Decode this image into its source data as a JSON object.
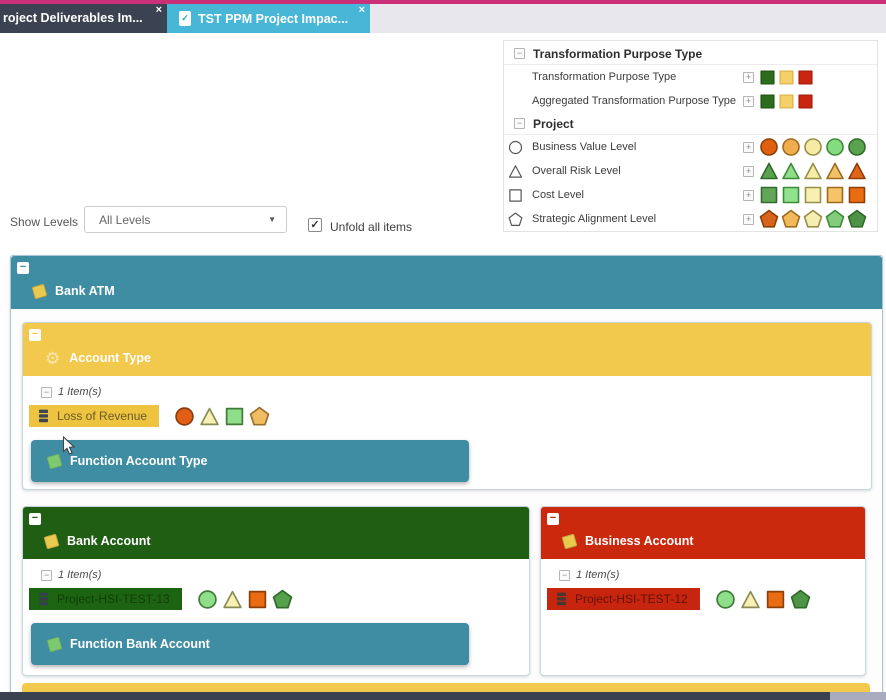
{
  "glyphs": {
    "collapse": "−",
    "expand": "+",
    "caret": "▼",
    "check": "✓",
    "close": "×",
    "gear": "⚙"
  },
  "tab_bar": {
    "strip_color": "#c93077",
    "bar_bg": "#e9e7ee",
    "tabs": [
      {
        "label": "roject Deliverables Im...",
        "bg": "#3b4251",
        "active": false
      },
      {
        "label": "TST PPM Project Impac...",
        "bg": "#47b6d7",
        "active": true
      }
    ]
  },
  "legend": {
    "sections": [
      {
        "title": "Transformation Purpose Type",
        "rows": [
          {
            "label": "Transformation Purpose Type",
            "swatch_shape": "square",
            "fills": [
              "#2d6b1d",
              "#f5d06a",
              "#c92511"
            ],
            "strokes": [
              "#245816",
              "#dcb84e",
              "#a81e0c"
            ]
          },
          {
            "label": "Aggregated Transformation Purpose Type",
            "swatch_shape": "square",
            "fills": [
              "#2d6b1d",
              "#f5d06a",
              "#c92511"
            ],
            "strokes": [
              "#245816",
              "#dcb84e",
              "#a81e0c"
            ]
          }
        ]
      },
      {
        "title": "Project",
        "rows": [
          {
            "label": "Business Value Level",
            "icon_shape": "circle",
            "swatch_shape": "circle",
            "fills": [
              "#e0600f",
              "#f0ad4e",
              "#f5eba2",
              "#85dc80",
              "#5aa34e"
            ],
            "strokes": [
              "#8a4008",
              "#a06a1e",
              "#96904a",
              "#3f8a3a",
              "#2f6b2a"
            ]
          },
          {
            "label": "Overall Risk Level",
            "icon_shape": "triangle",
            "swatch_shape": "triangle",
            "fills": [
              "#5ca14e",
              "#8fdc8a",
              "#f5eda6",
              "#f0c36a",
              "#e2641a"
            ],
            "strokes": [
              "#2f6b2a",
              "#3f8a3a",
              "#96904a",
              "#a06a1e",
              "#8a4008"
            ]
          },
          {
            "label": "Cost Level",
            "icon_shape": "square",
            "swatch_shape": "square",
            "fills": [
              "#63a659",
              "#90e28c",
              "#f7f0b0",
              "#f5c468",
              "#ea6c12"
            ],
            "strokes": [
              "#2f6b2a",
              "#3f8a3a",
              "#96904a",
              "#a06a1e",
              "#8a4008"
            ]
          },
          {
            "label": "Strategic Alignment Level",
            "icon_shape": "pentagon",
            "swatch_shape": "pentagon",
            "fills": [
              "#d8641c",
              "#f0b95a",
              "#f5eeb0",
              "#83cc7c",
              "#4d9247"
            ],
            "strokes": [
              "#8a4008",
              "#a06a1e",
              "#96904a",
              "#3f8a3a",
              "#2f6b2a"
            ]
          }
        ]
      }
    ]
  },
  "controls": {
    "show_levels_label": "Show Levels",
    "level_value": "All Levels",
    "unfold_label": "Unfold all items",
    "unfold_checked": true
  },
  "diagram": {
    "root": {
      "title": "Bank ATM",
      "header_color": "#3e8da3"
    },
    "account_type": {
      "title": "Account Type",
      "header_color": "#f3c94d",
      "items_count_label": "1 Item(s)",
      "item": {
        "label": "Loss of Revenue",
        "chip_bg": "#eec33f",
        "chip_text_color": "#6a5b2b",
        "shapes": [
          {
            "type": "circle",
            "fill": "#e05f14",
            "stroke": "#8a3c10"
          },
          {
            "type": "triangle",
            "fill": "#f7f0b5",
            "stroke": "#8a8a54"
          },
          {
            "type": "square",
            "fill": "#8fdf8a",
            "stroke": "#3f7a38"
          },
          {
            "type": "pentagon",
            "fill": "#f0bd62",
            "stroke": "#9a7030"
          }
        ]
      },
      "function_bar": {
        "label": "Function Account Type",
        "color": "#3e8da3"
      }
    },
    "bank_account": {
      "title": "Bank Account",
      "header_color": "#205e13",
      "items_count_label": "1 Item(s)",
      "item": {
        "label": "Project-HSI-TEST-13",
        "chip_bg": "#1c6412",
        "chip_text_color": "#123c08",
        "shapes": [
          {
            "type": "circle",
            "fill": "#8fdf8a",
            "stroke": "#3f7a38"
          },
          {
            "type": "triangle",
            "fill": "#f7f0b5",
            "stroke": "#8a8a54"
          },
          {
            "type": "square",
            "fill": "#ea6c12",
            "stroke": "#8a4008"
          },
          {
            "type": "pentagon",
            "fill": "#55a04b",
            "stroke": "#2f6b2a"
          }
        ]
      },
      "function_bar": {
        "label": "Function Bank Account",
        "color": "#3e8da3"
      }
    },
    "business_account": {
      "title": "Business Account",
      "header_color": "#cb290e",
      "items_count_label": "1 Item(s)",
      "item": {
        "label": "Project-HSI-TEST-12",
        "chip_bg": "#c8250f",
        "chip_text_color": "#611308",
        "shapes": [
          {
            "type": "circle",
            "fill": "#8fdf8a",
            "stroke": "#3f7a38"
          },
          {
            "type": "triangle",
            "fill": "#f7f0b5",
            "stroke": "#8a8a54"
          },
          {
            "type": "square",
            "fill": "#ea6c12",
            "stroke": "#8a4008"
          },
          {
            "type": "pentagon",
            "fill": "#4f9547",
            "stroke": "#2f6b2a"
          }
        ]
      }
    },
    "next_section": {
      "header_color": "#f3c94d"
    }
  },
  "footer": {
    "bar_color": "#3a4150",
    "bar_highlight": "#a9abbe"
  }
}
